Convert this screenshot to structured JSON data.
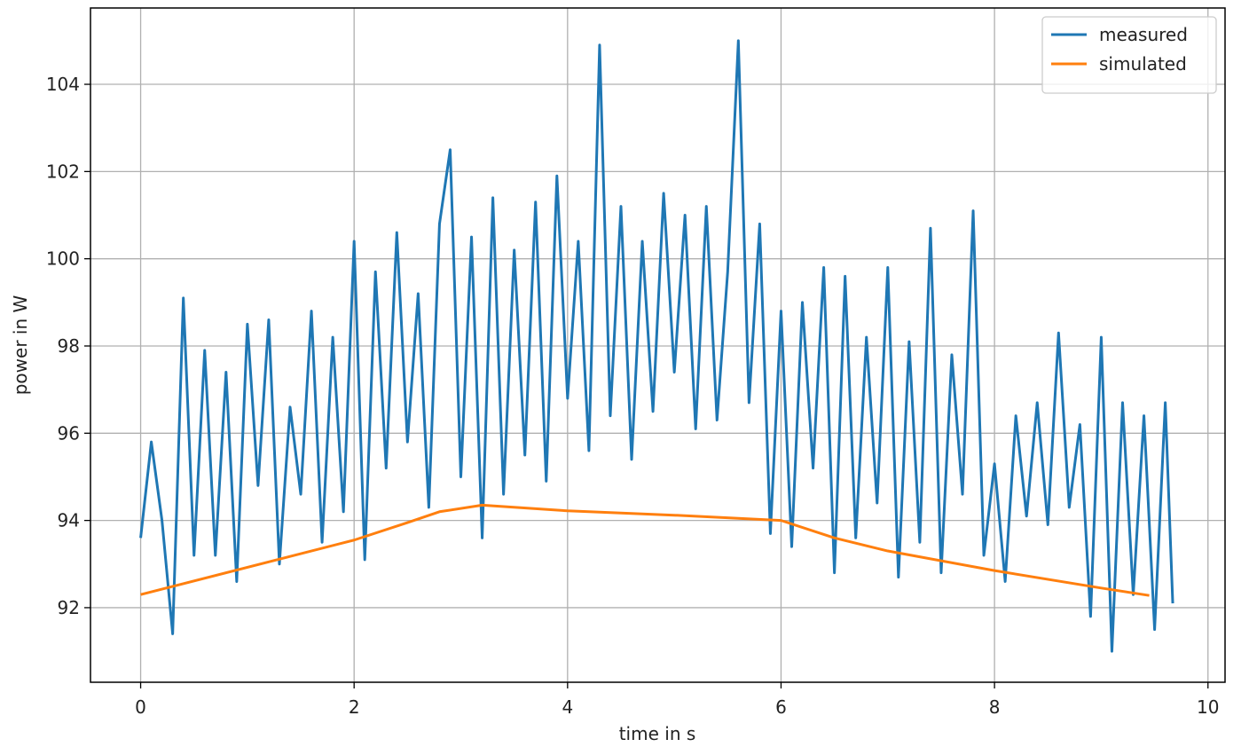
{
  "chart_data": {
    "type": "line",
    "xlabel": "time in s",
    "ylabel": "power in W",
    "xlim": [
      -0.47,
      10.16
    ],
    "ylim": [
      90.29,
      105.75
    ],
    "xticks": [
      0,
      2,
      4,
      6,
      8,
      10
    ],
    "yticks": [
      92,
      94,
      96,
      98,
      100,
      102,
      104
    ],
    "grid": true,
    "legend": "upper right",
    "series": [
      {
        "name": "measured",
        "color": "#1f77b4",
        "x": [
          0,
          0.1,
          0.2,
          0.3,
          0.4,
          0.5,
          0.6,
          0.7,
          0.8,
          0.9,
          1.0,
          1.1,
          1.2,
          1.3,
          1.4,
          1.5,
          1.6,
          1.7,
          1.8,
          1.9,
          2.0,
          2.1,
          2.2,
          2.3,
          2.4,
          2.5,
          2.6,
          2.7,
          2.8,
          2.9,
          3.0,
          3.1,
          3.2,
          3.3,
          3.4,
          3.5,
          3.6,
          3.7,
          3.8,
          3.9,
          4.0,
          4.1,
          4.2,
          4.3,
          4.4,
          4.5,
          4.6,
          4.7,
          4.8,
          4.9,
          5.0,
          5.1,
          5.2,
          5.3,
          5.4,
          5.5,
          5.6,
          5.7,
          5.8,
          5.9,
          6.0,
          6.1,
          6.2,
          6.3,
          6.4,
          6.5,
          6.6,
          6.7,
          6.8,
          6.9,
          7.0,
          7.1,
          7.2,
          7.3,
          7.4,
          7.5,
          7.6,
          7.7,
          7.8,
          7.9,
          8.0,
          8.1,
          8.2,
          8.3,
          8.4,
          8.5,
          8.6,
          8.7,
          8.8,
          8.9,
          9.0,
          9.1,
          9.2,
          9.3,
          9.4,
          9.5,
          9.6,
          9.67
        ],
        "values": [
          93.6,
          95.8,
          94.0,
          91.4,
          99.1,
          93.2,
          97.9,
          93.2,
          97.4,
          92.6,
          98.5,
          94.8,
          98.6,
          93.0,
          96.6,
          94.6,
          98.8,
          93.5,
          98.2,
          94.2,
          100.4,
          93.1,
          99.7,
          95.2,
          100.6,
          95.8,
          99.2,
          94.3,
          100.8,
          102.5,
          95.0,
          100.5,
          93.6,
          101.4,
          94.6,
          100.2,
          95.5,
          101.3,
          94.9,
          101.9,
          96.8,
          100.4,
          95.6,
          104.9,
          96.4,
          101.2,
          95.4,
          100.4,
          96.5,
          101.5,
          97.4,
          101.0,
          96.1,
          101.2,
          96.3,
          99.7,
          105.0,
          96.7,
          100.8,
          93.7,
          98.8,
          93.4,
          99.0,
          95.2,
          99.8,
          92.8,
          99.6,
          93.6,
          98.2,
          94.4,
          99.8,
          92.7,
          98.1,
          93.5,
          100.7,
          92.8,
          97.8,
          94.6,
          101.1,
          93.2,
          95.3,
          92.6,
          96.4,
          94.1,
          96.7,
          93.9,
          98.3,
          94.3,
          96.2,
          91.8,
          98.2,
          91.0,
          96.7,
          92.3,
          96.4,
          91.5,
          96.7,
          92.1
        ]
      },
      {
        "name": "simulated",
        "color": "#ff7f0e",
        "x": [
          0,
          2,
          2.5,
          2.8,
          3.2,
          4,
          5,
          6,
          6.5,
          7,
          8,
          9,
          9.45
        ],
        "values": [
          92.3,
          93.55,
          93.95,
          94.2,
          94.35,
          94.22,
          94.12,
          94.0,
          93.6,
          93.3,
          92.85,
          92.45,
          92.28
        ]
      }
    ]
  }
}
